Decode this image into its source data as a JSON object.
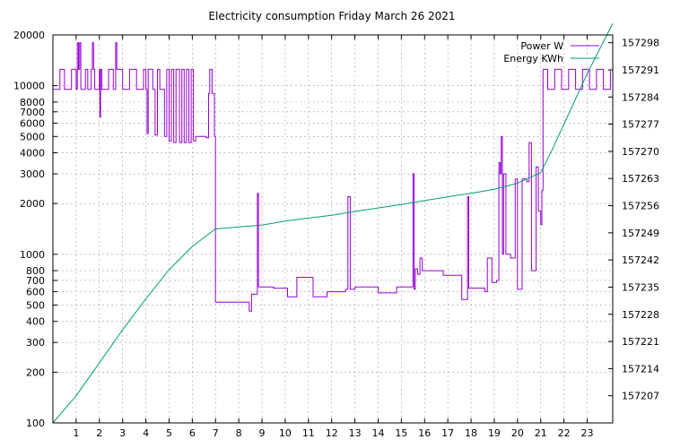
{
  "chart_data": {
    "type": "line",
    "title": "Electricity consumption Friday March 26 2021",
    "xlabel": "",
    "ylabel": "",
    "x_range": [
      0,
      24.1
    ],
    "x_ticks": [
      1,
      2,
      3,
      4,
      5,
      6,
      7,
      8,
      9,
      10,
      11,
      12,
      13,
      14,
      15,
      16,
      17,
      18,
      19,
      20,
      21,
      22,
      23
    ],
    "y_scale": "log",
    "y_range": [
      100,
      20000
    ],
    "y_ticks": [
      100,
      200,
      300,
      400,
      500,
      600,
      700,
      800,
      1000,
      2000,
      3000,
      4000,
      5000,
      6000,
      7000,
      8000,
      10000,
      20000
    ],
    "y2_range": [
      157200,
      157300
    ],
    "y2_ticks": [
      157207,
      157214,
      157221,
      157228,
      157235,
      157242,
      157249,
      157256,
      157263,
      157270,
      157277,
      157284,
      157291,
      157298
    ],
    "grid": true,
    "legend_position": "top-right",
    "series": [
      {
        "name": "Power W",
        "axis": "y",
        "color": "#9400d3",
        "points": [
          [
            0.0,
            9500
          ],
          [
            0.3,
            12500
          ],
          [
            0.5,
            9500
          ],
          [
            0.8,
            12500
          ],
          [
            1.0,
            9500
          ],
          [
            1.05,
            18000
          ],
          [
            1.1,
            12500
          ],
          [
            1.15,
            18000
          ],
          [
            1.2,
            9500
          ],
          [
            1.4,
            12500
          ],
          [
            1.5,
            9500
          ],
          [
            1.65,
            12500
          ],
          [
            1.7,
            18000
          ],
          [
            1.75,
            12500
          ],
          [
            1.8,
            9500
          ],
          [
            2.0,
            12500
          ],
          [
            2.02,
            6500
          ],
          [
            2.05,
            12500
          ],
          [
            2.1,
            9500
          ],
          [
            2.4,
            12500
          ],
          [
            2.6,
            9500
          ],
          [
            2.7,
            18000
          ],
          [
            2.75,
            12500
          ],
          [
            3.0,
            9500
          ],
          [
            3.3,
            12500
          ],
          [
            3.6,
            9500
          ],
          [
            3.9,
            12500
          ],
          [
            4.0,
            9500
          ],
          [
            4.05,
            5200
          ],
          [
            4.1,
            12500
          ],
          [
            4.3,
            9500
          ],
          [
            4.4,
            5100
          ],
          [
            4.5,
            12500
          ],
          [
            4.6,
            9500
          ],
          [
            4.8,
            5000
          ],
          [
            4.9,
            12500
          ],
          [
            5.0,
            4700
          ],
          [
            5.1,
            12500
          ],
          [
            5.2,
            4600
          ],
          [
            5.3,
            12500
          ],
          [
            5.45,
            4600
          ],
          [
            5.55,
            12500
          ],
          [
            5.65,
            4600
          ],
          [
            5.75,
            12500
          ],
          [
            5.85,
            4600
          ],
          [
            5.95,
            12500
          ],
          [
            6.05,
            4700
          ],
          [
            6.15,
            5000
          ],
          [
            6.4,
            5000
          ],
          [
            6.6,
            4900
          ],
          [
            6.7,
            9000
          ],
          [
            6.75,
            12500
          ],
          [
            6.85,
            9000
          ],
          [
            6.95,
            5000
          ],
          [
            7.0,
            520
          ],
          [
            8.0,
            520
          ],
          [
            8.45,
            460
          ],
          [
            8.55,
            580
          ],
          [
            8.75,
            580
          ],
          [
            8.8,
            2300
          ],
          [
            8.85,
            640
          ],
          [
            9.5,
            630
          ],
          [
            10.0,
            630
          ],
          [
            10.1,
            560
          ],
          [
            10.4,
            560
          ],
          [
            10.5,
            730
          ],
          [
            11.1,
            730
          ],
          [
            11.2,
            560
          ],
          [
            11.7,
            560
          ],
          [
            11.8,
            600
          ],
          [
            12.3,
            600
          ],
          [
            12.6,
            620
          ],
          [
            12.7,
            2200
          ],
          [
            12.8,
            620
          ],
          [
            13.0,
            640
          ],
          [
            13.8,
            640
          ],
          [
            14.0,
            590
          ],
          [
            14.7,
            590
          ],
          [
            14.8,
            640
          ],
          [
            15.4,
            640
          ],
          [
            15.5,
            3000
          ],
          [
            15.55,
            620
          ],
          [
            15.6,
            820
          ],
          [
            15.7,
            760
          ],
          [
            15.8,
            950
          ],
          [
            15.9,
            800
          ],
          [
            16.1,
            800
          ],
          [
            16.7,
            800
          ],
          [
            16.8,
            750
          ],
          [
            17.5,
            750
          ],
          [
            17.6,
            540
          ],
          [
            17.8,
            540
          ],
          [
            17.85,
            2200
          ],
          [
            17.9,
            630
          ],
          [
            18.5,
            630
          ],
          [
            18.6,
            600
          ],
          [
            18.7,
            950
          ],
          [
            18.8,
            950
          ],
          [
            18.9,
            680
          ],
          [
            19.1,
            700
          ],
          [
            19.2,
            3500
          ],
          [
            19.25,
            3000
          ],
          [
            19.3,
            5000
          ],
          [
            19.35,
            1000
          ],
          [
            19.4,
            3000
          ],
          [
            19.5,
            1000
          ],
          [
            19.7,
            950
          ],
          [
            19.8,
            950
          ],
          [
            19.9,
            2800
          ],
          [
            20.0,
            620
          ],
          [
            20.1,
            620
          ],
          [
            20.2,
            2800
          ],
          [
            20.4,
            2700
          ],
          [
            20.5,
            4600
          ],
          [
            20.6,
            800
          ],
          [
            20.7,
            800
          ],
          [
            20.8,
            3300
          ],
          [
            20.9,
            1800
          ],
          [
            21.0,
            1500
          ],
          [
            21.05,
            2400
          ],
          [
            21.1,
            12500
          ],
          [
            21.3,
            9500
          ],
          [
            21.6,
            12500
          ],
          [
            21.9,
            9500
          ],
          [
            22.2,
            12500
          ],
          [
            22.5,
            9500
          ],
          [
            22.8,
            12500
          ],
          [
            23.1,
            9500
          ],
          [
            23.4,
            12500
          ],
          [
            23.7,
            9500
          ],
          [
            24.0,
            12500
          ]
        ]
      },
      {
        "name": "Energy KWh",
        "axis": "y2",
        "color": "#009e73",
        "points": [
          [
            0.0,
            157200.0
          ],
          [
            1.0,
            157207.0
          ],
          [
            2.0,
            157215.5
          ],
          [
            3.0,
            157224.0
          ],
          [
            4.0,
            157232.0
          ],
          [
            5.0,
            157239.5
          ],
          [
            6.0,
            157245.5
          ],
          [
            7.0,
            157250.0
          ],
          [
            8.0,
            157250.5
          ],
          [
            9.0,
            157251.0
          ],
          [
            10.0,
            157252.0
          ],
          [
            11.0,
            157252.8
          ],
          [
            12.0,
            157253.5
          ],
          [
            13.0,
            157254.5
          ],
          [
            14.0,
            157255.4
          ],
          [
            15.0,
            157256.3
          ],
          [
            16.0,
            157257.3
          ],
          [
            17.0,
            157258.3
          ],
          [
            18.0,
            157259.2
          ],
          [
            19.0,
            157260.2
          ],
          [
            20.0,
            157261.8
          ],
          [
            21.0,
            157264.5
          ],
          [
            21.5,
            157270.5
          ],
          [
            22.0,
            157277.0
          ],
          [
            23.0,
            157290.0
          ],
          [
            24.1,
            157303.0
          ]
        ]
      }
    ]
  }
}
